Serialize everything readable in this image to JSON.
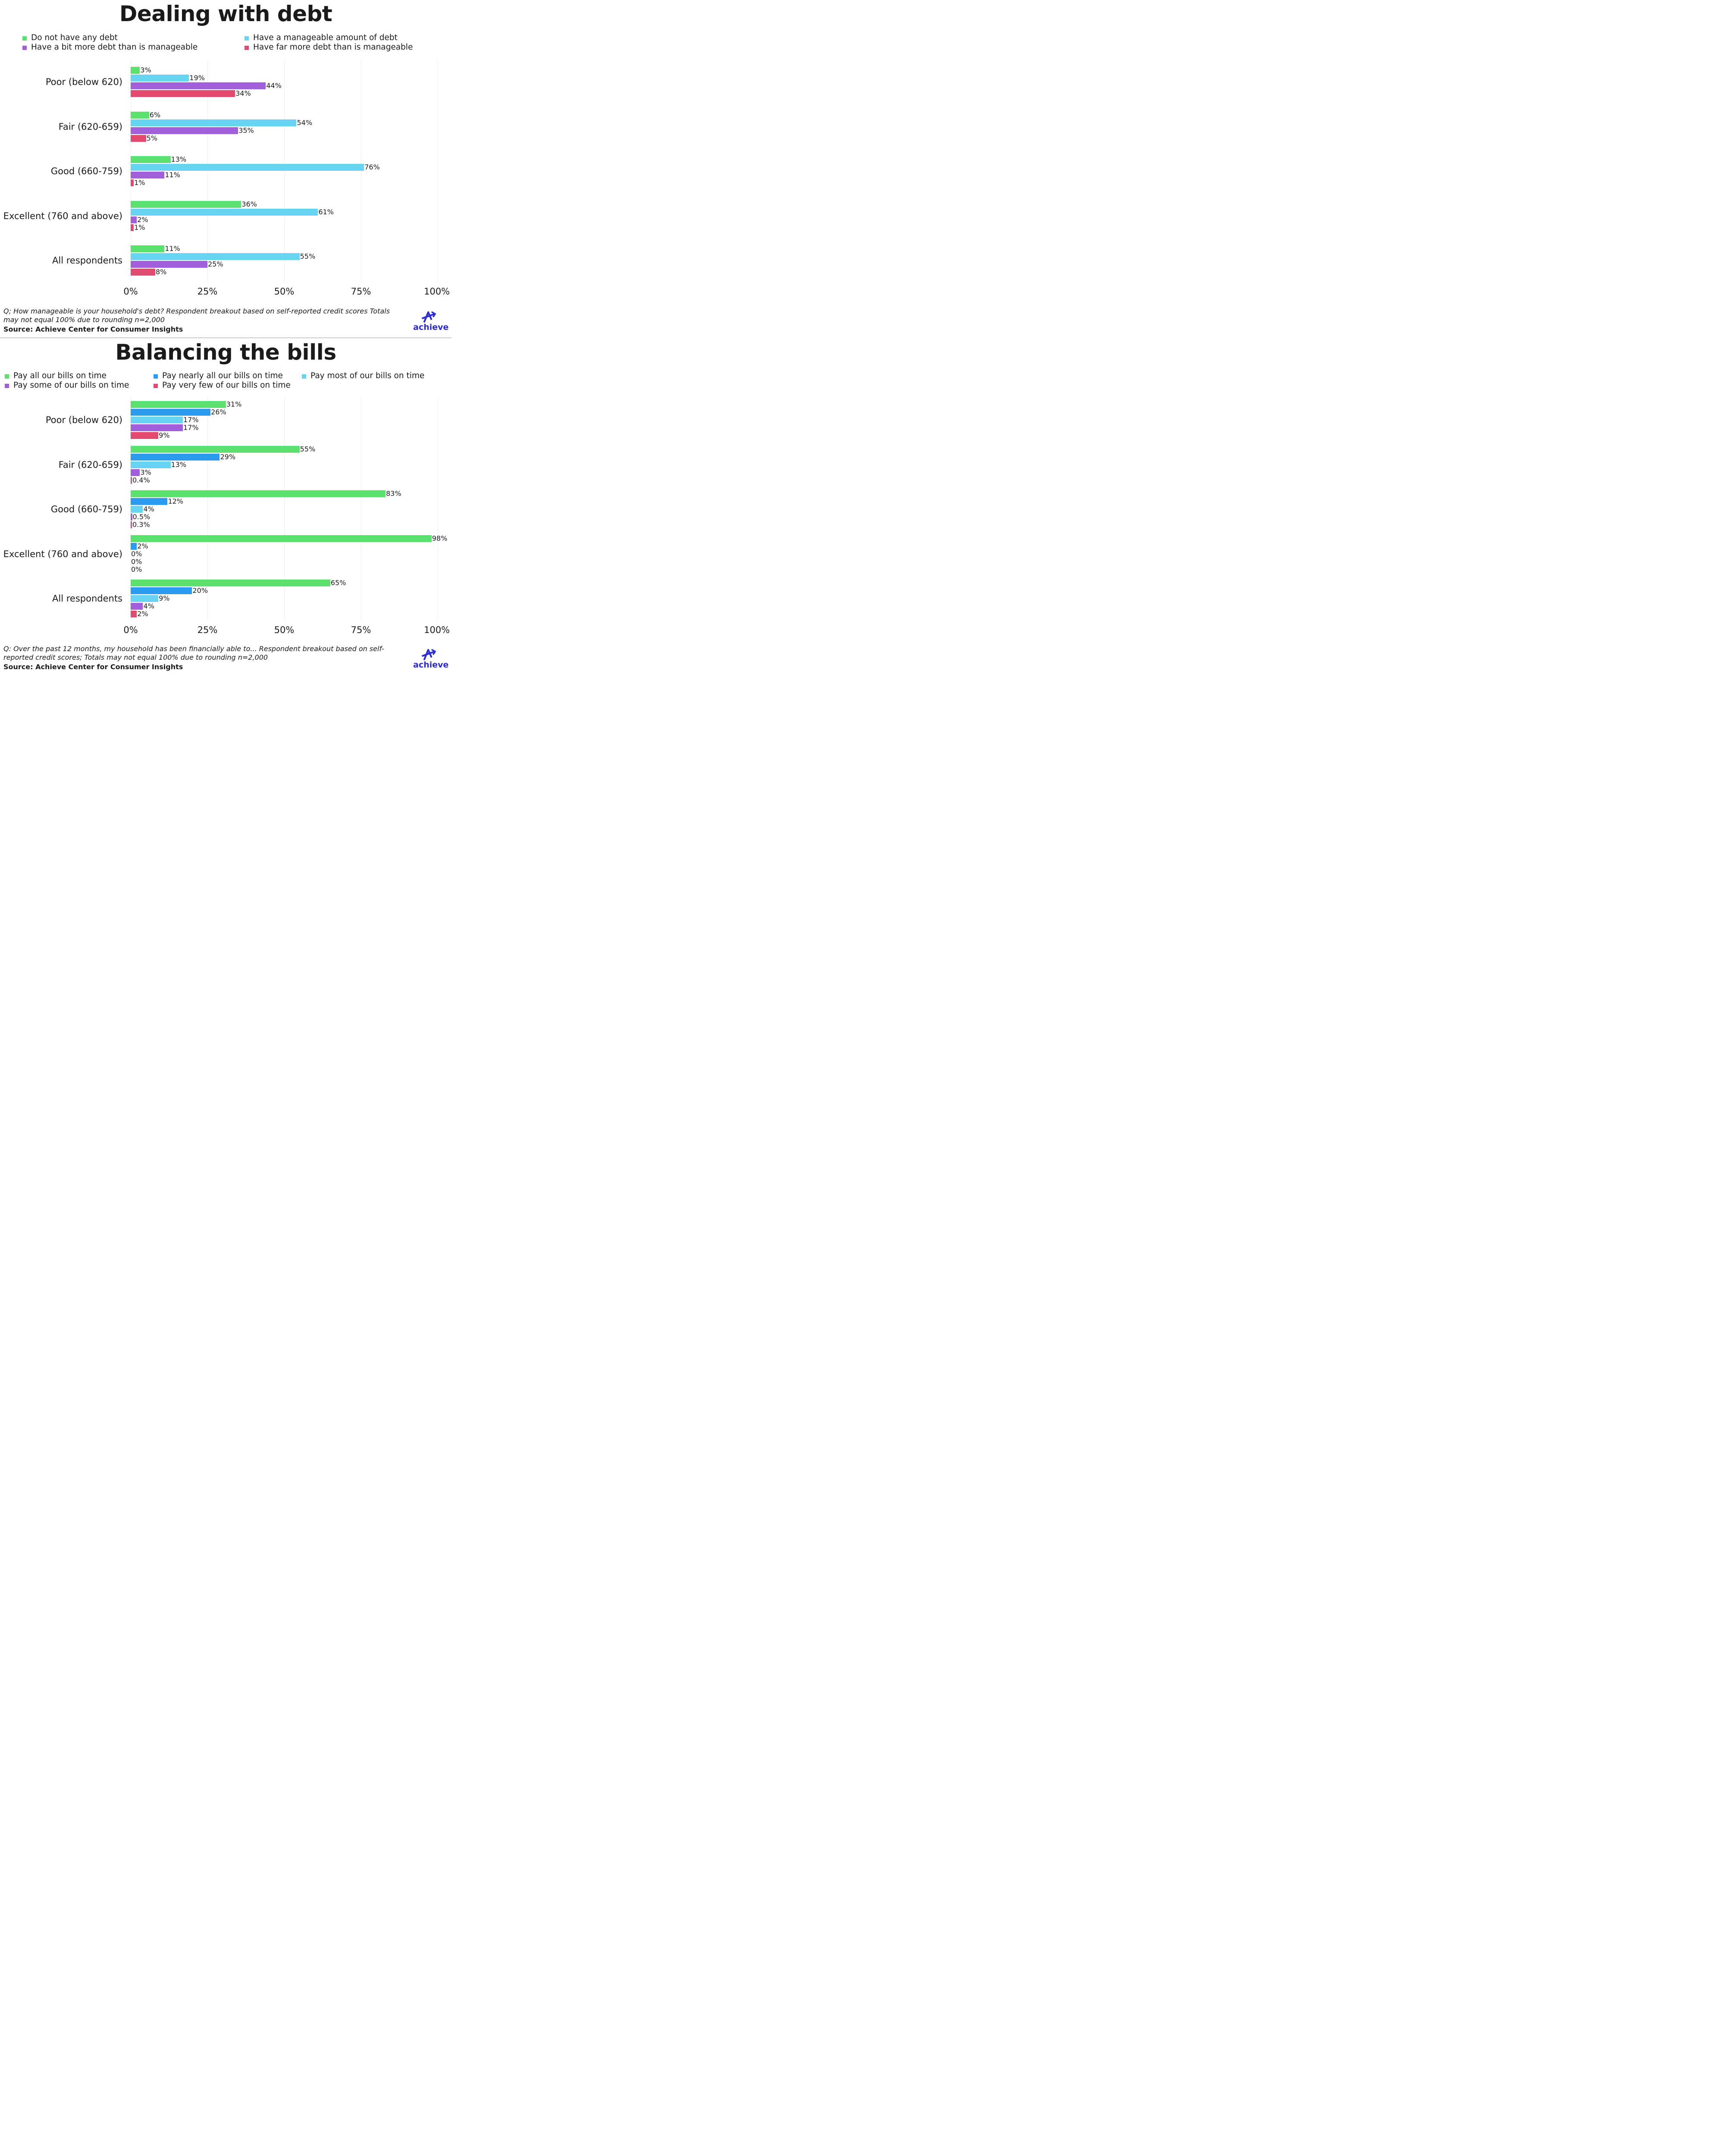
{
  "brand": {
    "logo_text": "achieve",
    "color": "#2b2bd6"
  },
  "chart_data": [
    {
      "type": "bar",
      "orientation": "horizontal",
      "title": "Dealing with debt",
      "categories": [
        "Poor (below 620)",
        "Fair (620-659)",
        "Good (660-759)",
        "Excellent (760 and above)",
        "All respondents"
      ],
      "series": [
        {
          "name": "Do not have any debt",
          "color": "#5ce06e",
          "values": [
            3,
            6,
            13,
            36,
            11
          ],
          "labels": [
            "3%",
            "6%",
            "13%",
            "36%",
            "11%"
          ]
        },
        {
          "name": "Have a manageable amount of debt",
          "color": "#67d5f2",
          "values": [
            19,
            54,
            76,
            61,
            55
          ],
          "labels": [
            "19%",
            "54%",
            "76%",
            "61%",
            "55%"
          ]
        },
        {
          "name": "Have a bit more debt than is manageable",
          "color": "#a15fdb",
          "values": [
            44,
            35,
            11,
            2,
            25
          ],
          "labels": [
            "44%",
            "35%",
            "11%",
            "2%",
            "25%"
          ]
        },
        {
          "name": "Have far more debt than is manageable",
          "color": "#e34a6f",
          "values": [
            34,
            5,
            1,
            1,
            8
          ],
          "labels": [
            "34%",
            "5%",
            "1%",
            "1%",
            "8%"
          ]
        }
      ],
      "xlim": [
        0,
        100
      ],
      "xticks": [
        "0%",
        "25%",
        "50%",
        "75%",
        "100%"
      ],
      "grid": true,
      "legend_position": "top",
      "question": "Q; How manageable is your household's debt? Respondent breakout based on self-reported credit scores Totals may not equal 100% due to rounding n=2,000",
      "source": "Source: Achieve Center for Consumer Insights"
    },
    {
      "type": "bar",
      "orientation": "horizontal",
      "title": "Balancing the bills",
      "categories": [
        "Poor (below 620)",
        "Fair (620-659)",
        "Good (660-759)",
        "Excellent (760 and above)",
        "All respondents"
      ],
      "series": [
        {
          "name": "Pay all our bills on time",
          "color": "#5ce06e",
          "values": [
            31,
            55,
            83,
            98,
            65
          ],
          "labels": [
            "31%",
            "55%",
            "83%",
            "98%",
            "65%"
          ]
        },
        {
          "name": "Pay nearly all our bills on time",
          "color": "#2b9bf0",
          "values": [
            26,
            29,
            12,
            2,
            20
          ],
          "labels": [
            "26%",
            "29%",
            "12%",
            "2%",
            "20%"
          ]
        },
        {
          "name": "Pay most of our bills on time",
          "color": "#67d5f2",
          "values": [
            17,
            13,
            4,
            0,
            9
          ],
          "labels": [
            "17%",
            "13%",
            "4%",
            "0%",
            "9%"
          ]
        },
        {
          "name": "Pay some of our bills on time",
          "color": "#a15fdb",
          "values": [
            17,
            3,
            0.5,
            0,
            4
          ],
          "labels": [
            "17%",
            "3%",
            "0.5%",
            "0%",
            "4%"
          ]
        },
        {
          "name": "Pay very few of our bills on time",
          "color": "#e34a6f",
          "values": [
            9,
            0.4,
            0.3,
            0,
            2
          ],
          "labels": [
            "9%",
            "0.4%",
            "0.3%",
            "0%",
            "2%"
          ]
        }
      ],
      "xlim": [
        0,
        100
      ],
      "xticks": [
        "0%",
        "25%",
        "50%",
        "75%",
        "100%"
      ],
      "grid": true,
      "legend_position": "top",
      "question": "Q: Over the past 12 months, my household has been financially able to... Respondent breakout based on self-reported credit scores; Totals may not equal 100% due to rounding n=2,000",
      "source": "Source: Achieve Center for Consumer Insights"
    }
  ]
}
